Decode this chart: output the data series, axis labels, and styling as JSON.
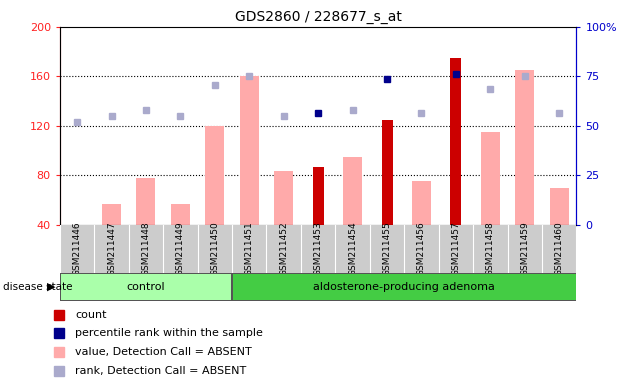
{
  "title": "GDS2860 / 228677_s_at",
  "samples": [
    "GSM211446",
    "GSM211447",
    "GSM211448",
    "GSM211449",
    "GSM211450",
    "GSM211451",
    "GSM211452",
    "GSM211453",
    "GSM211454",
    "GSM211455",
    "GSM211456",
    "GSM211457",
    "GSM211458",
    "GSM211459",
    "GSM211460"
  ],
  "groups": {
    "control": [
      0,
      1,
      2,
      3,
      4
    ],
    "aldosterone-producing adenoma": [
      5,
      6,
      7,
      8,
      9,
      10,
      11,
      12,
      13,
      14
    ]
  },
  "count": [
    null,
    null,
    null,
    null,
    null,
    null,
    null,
    87,
    null,
    125,
    null,
    175,
    null,
    null,
    null
  ],
  "percentile_rank": [
    null,
    null,
    null,
    null,
    null,
    null,
    null,
    130,
    null,
    158,
    null,
    162,
    null,
    null,
    null
  ],
  "value_absent": [
    40,
    57,
    78,
    57,
    120,
    160,
    83,
    null,
    95,
    null,
    75,
    null,
    115,
    165,
    70
  ],
  "rank_absent": [
    123,
    128,
    133,
    128,
    153,
    160,
    128,
    null,
    133,
    null,
    130,
    null,
    150,
    160,
    130
  ],
  "ylim_left": [
    40,
    200
  ],
  "ylim_right": [
    0,
    100
  ],
  "yticks_left": [
    40,
    80,
    120,
    160,
    200
  ],
  "yticks_right": [
    0,
    25,
    50,
    75,
    100
  ],
  "left_color": "#ff2222",
  "right_color": "#0000cc",
  "bar_count_color": "#cc0000",
  "bar_absent_color": "#ffaaaa",
  "dot_percentile_color": "#00008b",
  "dot_rank_color": "#aaaacc",
  "control_bg": "#aaffaa",
  "adenoma_bg": "#44cc44",
  "sample_bg": "#cccccc",
  "border_color": "#555555"
}
